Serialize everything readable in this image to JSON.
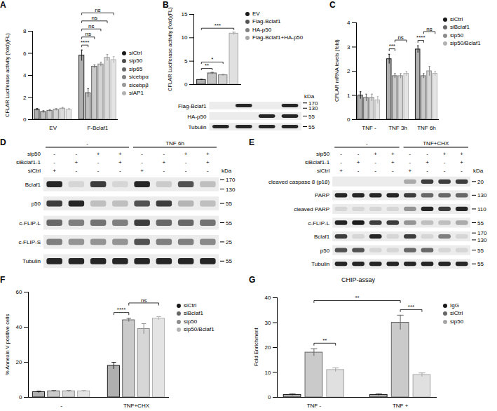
{
  "chart_data": [
    {
      "panel": "A",
      "type": "bar",
      "ylabel": [
        "CFLAR Luciferase activity (fold)",
        "(FL)"
      ],
      "categories": [
        "EV",
        "F-Bclaf1"
      ],
      "series": [
        {
          "name": "siCtrl",
          "color": "#1a1a1a",
          "values": [
            0.9,
            5.8
          ],
          "errors": [
            0.1,
            0.5
          ]
        },
        {
          "name": "sip50",
          "color": "#4d4d4d",
          "values": [
            0.7,
            2.4
          ],
          "errors": [
            0.1,
            0.4
          ]
        },
        {
          "name": "sip65",
          "color": "#666666",
          "values": [
            0.8,
            4.8
          ],
          "errors": [
            0.1,
            0.15
          ]
        },
        {
          "name": "sicebpα",
          "color": "#808080",
          "values": [
            0.9,
            5.0
          ],
          "errors": [
            0.1,
            0.2
          ]
        },
        {
          "name": "sicebpβ",
          "color": "#999999",
          "values": [
            1.0,
            5.6
          ],
          "errors": [
            0.1,
            0.3
          ]
        },
        {
          "name": "siAP1",
          "color": "#b3b3b3",
          "values": [
            0.9,
            5.4
          ],
          "errors": [
            0.1,
            0.3
          ]
        }
      ],
      "ylim": [
        0,
        8
      ],
      "yticks": [
        0,
        2,
        4,
        6,
        8
      ],
      "grid": false,
      "legend": "right",
      "marker": "circle",
      "annotations": [
        {
          "text": "****",
          "from": {
            "category": "F-Bclaf1",
            "series": "siCtrl"
          },
          "to": {
            "category": "F-Bclaf1",
            "series": "sip50"
          }
        },
        {
          "text": "ns",
          "from": {
            "category": "F-Bclaf1",
            "series": "siCtrl"
          },
          "to": {
            "category": "F-Bclaf1",
            "series": "sip65"
          }
        },
        {
          "text": "ns",
          "from": {
            "category": "F-Bclaf1",
            "series": "siCtrl"
          },
          "to": {
            "category": "F-Bclaf1",
            "series": "sicebpα"
          }
        },
        {
          "text": "ns",
          "from": {
            "category": "F-Bclaf1",
            "series": "siCtrl"
          },
          "to": {
            "category": "F-Bclaf1",
            "series": "sicebpβ"
          }
        },
        {
          "text": "ns",
          "from": {
            "category": "F-Bclaf1",
            "series": "siCtrl"
          },
          "to": {
            "category": "F-Bclaf1",
            "series": "siAP1"
          }
        }
      ]
    },
    {
      "panel": "B",
      "type": "bar",
      "ylabel": [
        "CFLAR Luciferase activity (fold)",
        "(FL)"
      ],
      "categories": [
        null
      ],
      "series": [
        {
          "name": "EV",
          "color": "#1a1a1a",
          "values": [
            1.0
          ],
          "errors": [
            0.1
          ]
        },
        {
          "name": "Flag-Bclaf1",
          "color": "#555555",
          "values": [
            2.4
          ],
          "errors": [
            0.2
          ]
        },
        {
          "name": "HA-p50",
          "color": "#808080",
          "values": [
            2.0
          ],
          "errors": [
            0.15
          ]
        },
        {
          "name": "Flag-Bclaf1+HA-p50",
          "color": "#a6a6a6",
          "values": [
            10.9
          ],
          "errors": [
            0.3
          ]
        }
      ],
      "ylim": [
        0,
        15
      ],
      "yticks": [
        0,
        5,
        10,
        15
      ],
      "grid": false,
      "legend": "right",
      "marker": "circle",
      "tick_labels": "y",
      "annotations": [
        {
          "text": "**",
          "from": {
            "category": null,
            "series": "EV"
          },
          "to": {
            "category": null,
            "series": "Flag-Bclaf1"
          }
        },
        {
          "text": "*",
          "from": {
            "category": null,
            "series": "EV"
          },
          "to": {
            "category": null,
            "series": "HA-p50"
          }
        },
        {
          "text": "***",
          "from": {
            "category": null,
            "series": "EV"
          },
          "to": {
            "category": null,
            "series": "Flag-Bclaf1+HA-p50"
          }
        }
      ]
    },
    {
      "panel": "C",
      "type": "bar",
      "ylabel": [
        "CFLAR mRNA levels (fold)"
      ],
      "categories": [
        "TNF -",
        "TNF 3h",
        "TNF 6h"
      ],
      "series": [
        {
          "name": "siCtrl",
          "color": "#1a1a1a",
          "values": [
            1.0,
            2.5,
            2.9
          ],
          "errors": [
            0.15,
            0.2,
            0.15
          ]
        },
        {
          "name": "siBclaf1",
          "color": "#666666",
          "values": [
            0.9,
            1.8,
            1.8
          ],
          "errors": [
            0.15,
            0.1,
            0.1
          ]
        },
        {
          "name": "sip50",
          "color": "#8c8c8c",
          "values": [
            0.9,
            1.8,
            2.0
          ],
          "errors": [
            0.15,
            0.1,
            0.2
          ]
        },
        {
          "name": "sip50/Bclaf1",
          "color": "#b3b3b3",
          "values": [
            0.8,
            1.9,
            1.9
          ],
          "errors": [
            0.15,
            0.1,
            0.1
          ]
        }
      ],
      "ylim": [
        0,
        4
      ],
      "yticks": [
        0,
        1,
        2,
        3,
        4
      ],
      "grid": false,
      "legend": "right",
      "marker": "circle",
      "annotations": [
        {
          "text": "***",
          "from": {
            "category": "TNF 3h",
            "series": "siCtrl"
          },
          "to": {
            "category": "TNF 3h",
            "series": "siBclaf1"
          }
        },
        {
          "text": "ns",
          "from": {
            "category": "TNF 3h",
            "series": "siBclaf1"
          },
          "to": {
            "category": "TNF 3h",
            "series": "sip50/Bclaf1"
          }
        },
        {
          "text": "****",
          "from": {
            "category": "TNF 6h",
            "series": "siCtrl"
          },
          "to": {
            "category": "TNF 6h",
            "series": "siBclaf1"
          }
        },
        {
          "text": "ns",
          "from": {
            "category": "TNF 6h",
            "series": "siBclaf1"
          },
          "to": {
            "category": "TNF 6h",
            "series": "sip50/Bclaf1"
          }
        }
      ]
    },
    {
      "panel": "F",
      "type": "bar",
      "ylabel": [
        "% Annexin V positive cells"
      ],
      "categories": [
        "-",
        "TNF+CHX"
      ],
      "series": [
        {
          "name": "siCtrl",
          "color": "#1a1a1a",
          "values": [
            3.0,
            18.0
          ],
          "errors": [
            0.5,
            2.0
          ]
        },
        {
          "name": "siBclaf1",
          "color": "#666666",
          "values": [
            3.5,
            44.0
          ],
          "errors": [
            0.5,
            1.0
          ]
        },
        {
          "name": "sip50",
          "color": "#8c8c8c",
          "values": [
            3.5,
            39.0
          ],
          "errors": [
            0.5,
            3.0
          ]
        },
        {
          "name": "sip50/Bclaf1",
          "color": "#b3b3b3",
          "values": [
            3.5,
            45.0
          ],
          "errors": [
            0.5,
            1.0
          ]
        }
      ],
      "ylim": [
        0,
        60
      ],
      "yticks": [
        0,
        20,
        40,
        60
      ],
      "grid": false,
      "legend": "right",
      "marker": "circle",
      "annotations": [
        {
          "text": "****",
          "from": {
            "category": "TNF+CHX",
            "series": "siCtrl"
          },
          "to": {
            "category": "TNF+CHX",
            "series": "siBclaf1"
          }
        },
        {
          "text": "ns",
          "from": {
            "category": "TNF+CHX",
            "series": "siBclaf1"
          },
          "to": {
            "category": "TNF+CHX",
            "series": "sip50/Bclaf1"
          }
        }
      ]
    },
    {
      "panel": "G",
      "type": "bar",
      "title": "CHIP-assay",
      "ylabel": [
        "Fold Enrichment"
      ],
      "categories": [
        "TNF -",
        "TNF +"
      ],
      "series": [
        {
          "name": "IgG",
          "color": "#1a1a1a",
          "values": [
            1.0,
            1.0
          ],
          "errors": [
            0.3,
            0.3
          ]
        },
        {
          "name": "siCtrl",
          "color": "#666666",
          "values": [
            18.0,
            30.0
          ],
          "errors": [
            1.5,
            3.0
          ]
        },
        {
          "name": "sip50",
          "color": "#a6a6a6",
          "values": [
            11.0,
            9.0
          ],
          "errors": [
            0.8,
            0.8
          ]
        }
      ],
      "ylim": [
        0,
        40
      ],
      "yticks": [
        0,
        10,
        20,
        30,
        40
      ],
      "grid": false,
      "legend": "right",
      "marker": "circle",
      "annotations": [
        {
          "text": "**",
          "from": {
            "category": "TNF -",
            "series": "siCtrl"
          },
          "to": {
            "category": "TNF -",
            "series": "sip50"
          }
        },
        {
          "text": "***",
          "from": {
            "category": "TNF +",
            "series": "siCtrl"
          },
          "to": {
            "category": "TNF +",
            "series": "sip50"
          }
        },
        {
          "text": "**",
          "from": {
            "category": "TNF -",
            "series": "siCtrl"
          },
          "to": {
            "category": "TNF +",
            "series": "siCtrl"
          }
        }
      ]
    }
  ],
  "blots": [
    {
      "marker_unit": "kDa",
      "rows": [
        {
          "label": "Flag-Bclaf1",
          "intensity": [
            0,
            0.9,
            0,
            0.9
          ],
          "markers": [
            170,
            130
          ]
        },
        {
          "label": "HA-p50",
          "intensity": [
            0,
            0,
            0.9,
            0.9
          ],
          "markers": [
            55
          ]
        },
        {
          "label": "Tubulin",
          "intensity": [
            0.9,
            0.9,
            0.9,
            0.9
          ],
          "markers": [
            55
          ]
        }
      ]
    },
    {
      "panel": "D",
      "groups": [
        {
          "label": "-",
          "lanes": 4
        },
        {
          "label": "TNF 6h",
          "lanes": 4
        }
      ],
      "columns": [
        {
          "label": "sip50",
          "values": [
            "-",
            "-",
            "+",
            "+",
            "-",
            "-",
            "+",
            "+"
          ]
        },
        {
          "label": "siBclaf1-1",
          "values": [
            "-",
            "+",
            "-",
            "+",
            "-",
            "+",
            "-",
            "+"
          ]
        },
        {
          "label": "siCtrl",
          "values": [
            "+",
            "-",
            "-",
            "-",
            "+",
            "-",
            "-",
            "-"
          ]
        }
      ],
      "marker_unit": "kDa",
      "rows": [
        {
          "label": "Bclaf1",
          "intensity": [
            0.9,
            0.1,
            0.8,
            0.1,
            0.9,
            0.15,
            0.7,
            0.2
          ],
          "markers": [
            170,
            130
          ]
        },
        {
          "label": "p50",
          "intensity": [
            0.8,
            0.9,
            0.2,
            0.2,
            0.7,
            0.8,
            0.25,
            0.2
          ],
          "markers": [
            55
          ]
        },
        {
          "label": "c-FLIP-L",
          "intensity": [
            0.6,
            0.5,
            0.55,
            0.5,
            0.8,
            0.6,
            0.6,
            0.55
          ],
          "markers": [
            55
          ]
        },
        {
          "label": "c-FLIP-S",
          "intensity": [
            0.5,
            0.4,
            0.4,
            0.4,
            0.7,
            0.5,
            0.5,
            0.45
          ],
          "markers": [
            25
          ]
        },
        {
          "label": "Tubulin",
          "intensity": [
            0.9,
            0.9,
            0.9,
            0.9,
            0.9,
            0.9,
            0.9,
            0.9
          ],
          "markers": [
            55
          ]
        }
      ]
    },
    {
      "panel": "E",
      "groups": [
        {
          "label": "-",
          "lanes": 4
        },
        {
          "label": "TNF+CHX",
          "lanes": 4
        }
      ],
      "columns": [
        {
          "label": "sip50",
          "values": [
            "-",
            "-",
            "+",
            "+",
            "-",
            "-",
            "+",
            "+"
          ]
        },
        {
          "label": "siBclaf1-1",
          "values": [
            "-",
            "+",
            "-",
            "+",
            "-",
            "+",
            "-",
            "+"
          ]
        },
        {
          "label": "siCtrl",
          "values": [
            "+",
            "-",
            "-",
            "-",
            "+",
            "-",
            "-",
            "-"
          ]
        }
      ],
      "marker_unit": "kDa",
      "rows": [
        {
          "label": "cleaved caspase 8 (p18)",
          "intensity": [
            0,
            0,
            0,
            0,
            0.3,
            0.8,
            0.8,
            0.8
          ],
          "markers": [
            20
          ]
        },
        {
          "label": "PARP",
          "intensity": [
            0.9,
            0.9,
            0.9,
            0.9,
            0.8,
            0.6,
            0.6,
            0.6
          ],
          "markers": [
            130
          ]
        },
        {
          "label": "cleaved PARP",
          "intensity": [
            0.1,
            0.1,
            0.1,
            0.1,
            0.4,
            0.9,
            0.8,
            0.9
          ],
          "markers": [
            110
          ]
        },
        {
          "label": "c-FLIP-L",
          "intensity": [
            0.9,
            0.95,
            0.8,
            0.8,
            0.4,
            0.2,
            0.2,
            0.3
          ],
          "markers": [
            55
          ]
        },
        {
          "label": "Bclaf1",
          "intensity": [
            0.8,
            0.1,
            0.9,
            0.1,
            0.8,
            0.1,
            0.5,
            0.1
          ],
          "markers": [
            170,
            130
          ]
        },
        {
          "label": "p50",
          "intensity": [
            0.7,
            0.7,
            0.1,
            0.1,
            0.6,
            0.6,
            0.1,
            0.1
          ],
          "markers": [
            55
          ]
        },
        {
          "label": "Tubulin",
          "intensity": [
            0.9,
            0.9,
            0.9,
            0.9,
            0.9,
            0.9,
            0.9,
            0.9
          ],
          "markers": [
            55
          ]
        }
      ]
    }
  ]
}
